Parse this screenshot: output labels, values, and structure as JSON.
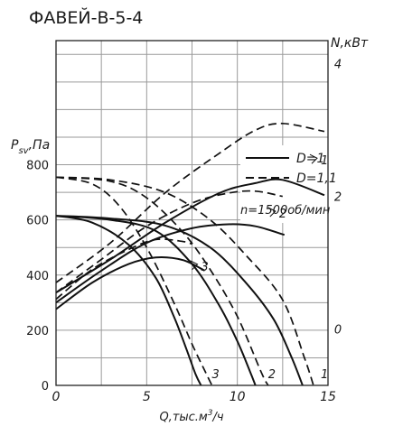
{
  "chart_data": {
    "type": "line",
    "title": "ФАВЕЙ-В-5-4",
    "xlabel": "Q,тыс.м",
    "xlabel_sup": "3",
    "xlabel_tail": "/ч",
    "ylabel_left": "P",
    "ylabel_left_sub": "sv",
    "ylabel_left_tail": ",Па",
    "ylabel_right": "N,кВт",
    "x_ticks": [
      "0",
      "5",
      "10",
      "15"
    ],
    "y_ticks_left": [
      "0",
      "200",
      "400",
      "600",
      "800"
    ],
    "y_ticks_right": [
      "0",
      "2",
      "4"
    ],
    "xlim": [
      0,
      15
    ],
    "ylim_left": [
      0,
      1250
    ],
    "ylim_right": [
      -0.85,
      4.35
    ],
    "grid": true,
    "legend": {
      "position": "center-right",
      "entries": [
        {
          "label": "D=1",
          "style": "solid"
        },
        {
          "label": "D=1,1",
          "style": "dashed"
        }
      ],
      "speed_note": "n=1500об/мин"
    },
    "pressure_series": [
      {
        "name": "3",
        "style": "solid",
        "x": [
          0,
          2,
          4,
          5.5,
          6.5,
          7.2,
          7.7,
          8.0
        ],
        "y": [
          615,
          590,
          510,
          390,
          250,
          130,
          40,
          0
        ]
      },
      {
        "name": "3",
        "style": "dashed",
        "x": [
          0,
          2,
          3.5,
          5,
          6.5,
          7.5,
          8.3,
          8.6
        ],
        "y": [
          755,
          730,
          650,
          500,
          300,
          150,
          40,
          0
        ]
      },
      {
        "name": "2",
        "style": "solid",
        "x": [
          0,
          3,
          5.5,
          7.5,
          9,
          10,
          10.7,
          11.0
        ],
        "y": [
          615,
          600,
          560,
          440,
          290,
          160,
          50,
          0
        ]
      },
      {
        "name": "2",
        "style": "dashed",
        "x": [
          0,
          3,
          5,
          7,
          8.5,
          10,
          11.3,
          11.7
        ],
        "y": [
          755,
          740,
          680,
          555,
          420,
          250,
          50,
          0
        ]
      },
      {
        "name": "1",
        "style": "solid",
        "x": [
          0,
          3,
          6,
          8.5,
          10.5,
          12,
          13,
          13.6
        ],
        "y": [
          615,
          605,
          580,
          500,
          370,
          240,
          100,
          0
        ]
      },
      {
        "name": "1",
        "style": "dashed",
        "x": [
          0,
          3,
          6,
          8.5,
          10.5,
          12.5,
          13.7,
          14.2
        ],
        "y": [
          755,
          745,
          700,
          600,
          470,
          310,
          100,
          0
        ]
      }
    ],
    "power_series": [
      {
        "name": "3",
        "style": "solid",
        "x": [
          0,
          2,
          4,
          5.5,
          7,
          8.2
        ],
        "y": [
          0.3,
          0.7,
          0.98,
          1.08,
          1.04,
          0.88
        ]
      },
      {
        "name": "3",
        "style": "dashed",
        "x": [
          0,
          2,
          4,
          5.5,
          7,
          7.5
        ],
        "y": [
          0.45,
          0.9,
          1.2,
          1.35,
          1.32,
          1.28
        ]
      },
      {
        "name": "2",
        "style": "solid",
        "x": [
          0,
          2.5,
          5,
          7.5,
          9.5,
          11,
          12.6
        ],
        "y": [
          0.4,
          0.88,
          1.3,
          1.52,
          1.58,
          1.55,
          1.42
        ]
      },
      {
        "name": "2",
        "style": "dashed",
        "x": [
          0,
          2.5,
          5,
          7.5,
          9.5,
          11,
          12.5
        ],
        "y": [
          0.55,
          1.05,
          1.55,
          1.9,
          2.05,
          2.08,
          2.0
        ]
      },
      {
        "name": "1",
        "style": "solid",
        "x": [
          0,
          3,
          6,
          9,
          11,
          12.5,
          14.8
        ],
        "y": [
          0.55,
          1.05,
          1.6,
          2.05,
          2.2,
          2.25,
          2.02
        ]
      },
      {
        "name": "1",
        "style": "dashed",
        "x": [
          0,
          3,
          6,
          9,
          11,
          12.5,
          14.8
        ],
        "y": [
          0.7,
          1.3,
          2.05,
          2.65,
          3.0,
          3.1,
          2.98
        ]
      }
    ],
    "curve_labels": {
      "pressure": [
        {
          "text": "3",
          "x": 8.2,
          "y": 40
        },
        {
          "text": "2",
          "x": 11.3,
          "y": 40
        },
        {
          "text": "1",
          "x": 14.2,
          "y": 40
        }
      ],
      "power": [
        {
          "text": "3",
          "x": 8.0,
          "y": 0.95
        },
        {
          "text": "2",
          "x": 12.3,
          "y": 1.75
        },
        {
          "text": "1",
          "x": 14.6,
          "y": 2.55
        }
      ]
    }
  }
}
